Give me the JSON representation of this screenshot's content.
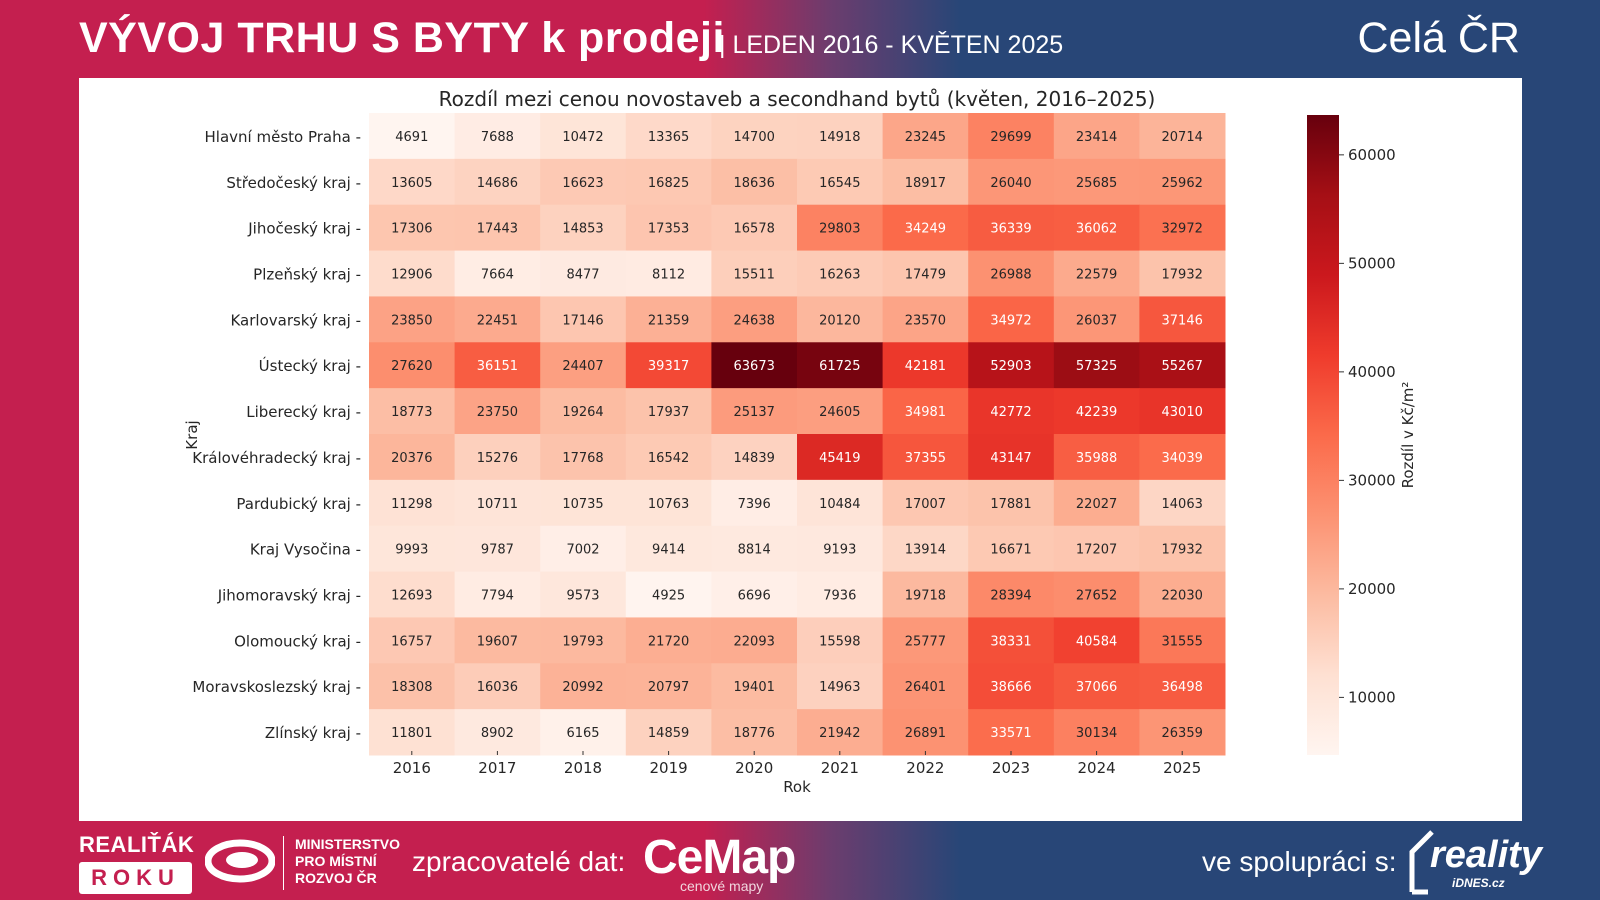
{
  "header": {
    "title": "VÝVOJ TRHU S BYTY k prodeji",
    "subtitle": "| LEDEN 2016 - KVĚTEN 2025",
    "region": "Celá ČR"
  },
  "footer": {
    "realitak": "REALIŤÁK",
    "roku": "ROKU",
    "ministry": [
      "MINISTERSTVO",
      "PRO MÍSTNÍ",
      "ROZVOJ ČR"
    ],
    "processors_label": "zpracovatelé dat:",
    "cemap": "CeMap",
    "cemap_sub": "cenové mapy",
    "cooperation_label": "ve spolupráci s:",
    "reality": "reality",
    "reality_sub": "iDNES.cz"
  },
  "chart_data": {
    "type": "heatmap",
    "title": "Rozdíl mezi cenou novostaveb a secondhand bytů (květen, 2016–2025)",
    "xlabel": "Rok",
    "ylabel": "Kraj",
    "colorbar_label": "Rozdíl v Kč/m²",
    "colormap": "Reds",
    "vmin": 4691,
    "vmax": 63673,
    "colorbar_ticks": [
      10000,
      20000,
      30000,
      40000,
      50000,
      60000
    ],
    "x": [
      "2016",
      "2017",
      "2018",
      "2019",
      "2020",
      "2021",
      "2022",
      "2023",
      "2024",
      "2025"
    ],
    "y": [
      "Hlavní město Praha",
      "Středočeský kraj",
      "Jihočeský kraj",
      "Plzeňský kraj",
      "Karlovarský kraj",
      "Ústecký kraj",
      "Liberecký kraj",
      "Královéhradecký kraj",
      "Pardubický kraj",
      "Kraj Vysočina",
      "Jihomoravský kraj",
      "Olomoucký kraj",
      "Moravskoslezský kraj",
      "Zlínský kraj"
    ],
    "values": [
      [
        4691,
        7688,
        10472,
        13365,
        14700,
        14918,
        23245,
        29699,
        23414,
        20714
      ],
      [
        13605,
        14686,
        16623,
        16825,
        18636,
        16545,
        18917,
        26040,
        25685,
        25962
      ],
      [
        17306,
        17443,
        14853,
        17353,
        16578,
        29803,
        34249,
        36339,
        36062,
        32972
      ],
      [
        12906,
        7664,
        8477,
        8112,
        15511,
        16263,
        17479,
        26988,
        22579,
        17932
      ],
      [
        23850,
        22451,
        17146,
        21359,
        24638,
        20120,
        23570,
        34972,
        26037,
        37146
      ],
      [
        27620,
        36151,
        24407,
        39317,
        63673,
        61725,
        42181,
        52903,
        57325,
        55267
      ],
      [
        18773,
        23750,
        19264,
        17937,
        25137,
        24605,
        34981,
        42772,
        42239,
        43010
      ],
      [
        20376,
        15276,
        17768,
        16542,
        14839,
        45419,
        37355,
        43147,
        35988,
        34039
      ],
      [
        11298,
        10711,
        10735,
        10763,
        7396,
        10484,
        17007,
        17881,
        22027,
        14063
      ],
      [
        9993,
        9787,
        7002,
        9414,
        8814,
        9193,
        13914,
        16671,
        17207,
        17932
      ],
      [
        12693,
        7794,
        9573,
        4925,
        6696,
        7936,
        19718,
        28394,
        27652,
        22030
      ],
      [
        16757,
        19607,
        19793,
        21720,
        22093,
        15598,
        25777,
        38331,
        40584,
        31555
      ],
      [
        18308,
        16036,
        20992,
        20797,
        19401,
        14963,
        26401,
        38666,
        37066,
        36498
      ],
      [
        11801,
        8902,
        6165,
        14859,
        18776,
        21942,
        26891,
        33571,
        30134,
        26359
      ]
    ]
  }
}
